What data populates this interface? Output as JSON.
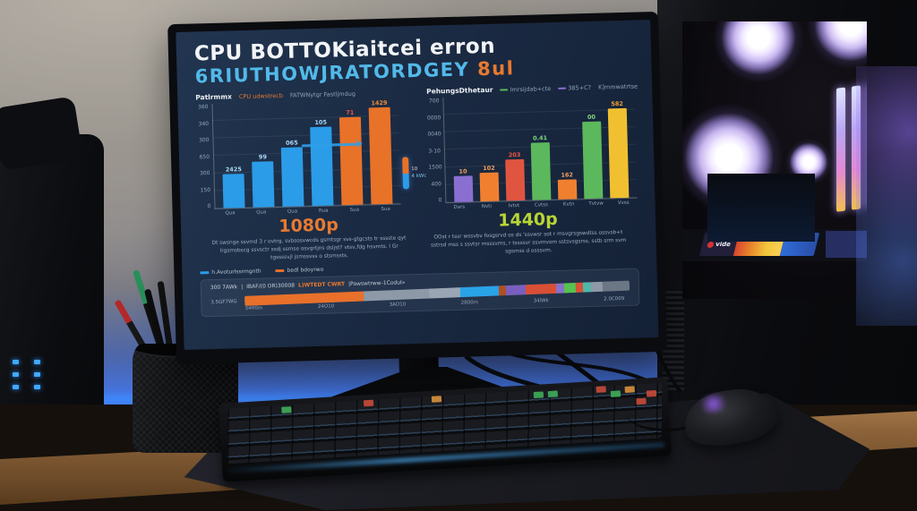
{
  "colors": {
    "accent_cyan": "#52b9e9",
    "accent_orange": "#e87a30",
    "res_1440_green": "#b8d435",
    "bar_blue": "#2b9ce8",
    "bar_orange": "#e87228",
    "led_glow_blue": "#3f8cff"
  },
  "monitor": {
    "title_line1": "CPU BOTTOKiaitcei erron",
    "title_line2": "6RIUTHOWJRATORDGEY",
    "title_line2_suffix": "8ul",
    "left_panel": {
      "legend_title": "Patlrmmx",
      "legend_item1": "CPU udwstrecb",
      "legend_item2": "FATWNytgr Fastljmdug",
      "res_label": "1080p",
      "paragraph": "Dt swsnge ssvmd 3 r ovtrg, svbsosvwcds gsmtsgr svs-gtgcsts tr sssste qyt lrgsmsbscg ssvsctr ssdj ssmse osvgrtjns dsljst? vtsv,fdg hsvmts. l Gr tgssssvjl jsmssvss o stsmssts."
    },
    "right_panel": {
      "legend_title": "PehungsDthetaur",
      "legend_item1": "Imrsijdab+cte",
      "legend_item2": "385+C?",
      "legend_item3": "K]mmwatrtse",
      "res_label": "1440p",
      "paragraph": "OOst r tssr wssvbv fosgsrvd os ds 'ssvwsr sot r msvgrsgswdtss ossvsb+t sstrsd mss s ssvtsr msssvms, r tssssvr ssvmvom sstsvsgsrss, sstb srm svm sgsmss d osssvm."
    },
    "mini_indicator": {
      "top_label": "10",
      "bottom_label": "4 kWc"
    },
    "bottom_legend": {
      "item1": "h.Avoturlssrmgnth",
      "item2": "bedl bdoyrwo"
    },
    "bottom_panel": {
      "header_left": "300 7AWk",
      "header_sep": "|",
      "header_text1": "IBAF/(0 OR)30008",
      "header_highlight": "L)WTEDT CWRT",
      "header_text2": "|Pawswtrww-1Codul»",
      "row_label": "3.5GF7WG"
    }
  },
  "chart_data": [
    {
      "type": "bar",
      "title": "1080p",
      "legend_position": "top-left",
      "grid": true,
      "y_ticks": [
        "360",
        "340",
        "300",
        "650",
        "300",
        "150",
        "0"
      ],
      "bars": [
        {
          "x": "Qua",
          "value": "2425",
          "height_pct": 33,
          "color": "#2b9ce8",
          "value_color": "#a8d8f5"
        },
        {
          "x": "Qua",
          "value": "99",
          "height_pct": 44,
          "color": "#2b9ce8",
          "value_color": "#a8d8f5"
        },
        {
          "x": "Qua",
          "value": "065",
          "height_pct": 57,
          "color": "#2b9ce8",
          "value_color": "#a8d8f5"
        },
        {
          "x": "Rua",
          "value": "105",
          "height_pct": 76,
          "color": "#2b9ce8",
          "value_color": "#a8d8f5"
        },
        {
          "x": "Sua",
          "value": "71",
          "height_pct": 84,
          "color": "#e87228",
          "value_color": "#f05540"
        },
        {
          "x": "Sua",
          "value": "1429",
          "height_pct": 95,
          "color": "#e87228",
          "value_color": "#f08a3a"
        }
      ],
      "annotation": "blue arrow pointing right between 4th and 5th bars"
    },
    {
      "type": "bar",
      "title": "1440p",
      "legend_position": "top-left",
      "grid": true,
      "y_ticks": [
        "700",
        "0000",
        "0040",
        "3-10",
        "1500",
        "400",
        "0"
      ],
      "bars": [
        {
          "x": "Dars",
          "value": "10",
          "height_pct": 25,
          "color": "#8a6fd0",
          "value_color": "#f0a060"
        },
        {
          "x": "Nvti",
          "value": "102",
          "height_pct": 28,
          "color": "#f08030",
          "value_color": "#f0a060"
        },
        {
          "x": "Ivtvt",
          "value": "203",
          "height_pct": 40,
          "color": "#e05540",
          "value_color": "#f05540"
        },
        {
          "x": "Cvtss",
          "value": "0.41",
          "height_pct": 55,
          "color": "#5cb85c",
          "value_color": "#7ed87e"
        },
        {
          "x": "Kvtn",
          "value": "162",
          "height_pct": 19,
          "color": "#f08030",
          "value_color": "#f0a060"
        },
        {
          "x": "Tvtvw",
          "value": "00",
          "height_pct": 74,
          "color": "#5cb85c",
          "value_color": "#7ed87e"
        },
        {
          "x": "Vvss",
          "value": "582",
          "height_pct": 86,
          "color": "#f0c030",
          "value_color": "#f0a030"
        }
      ]
    },
    {
      "type": "stacked_bar",
      "x_ticks": [
        "34H0m",
        "24O10",
        "3AO10",
        "2800m",
        "34lWk",
        "2.0C009"
      ],
      "segments": [
        {
          "color": "#e8702a",
          "width_pct": 31
        },
        {
          "color": "#8d99a7",
          "width_pct": 17
        },
        {
          "color": "#9aa6b4",
          "width_pct": 8
        },
        {
          "color": "#29a3e8",
          "width_pct": 10
        },
        {
          "color": "#b05020",
          "width_pct": 2
        },
        {
          "color": "#7a5fc0",
          "width_pct": 5
        },
        {
          "color": "#d94f35",
          "width_pct": 8
        },
        {
          "color": "#8a70c8",
          "width_pct": 2
        },
        {
          "color": "#57c24f",
          "width_pct": 3
        },
        {
          "color": "#d94f35",
          "width_pct": 2
        },
        {
          "color": "#4fb8a8",
          "width_pct": 2
        },
        {
          "color": "#8d99a7",
          "width_pct": 3
        },
        {
          "color": "#6b7785",
          "width_pct": 7
        }
      ]
    }
  ]
}
